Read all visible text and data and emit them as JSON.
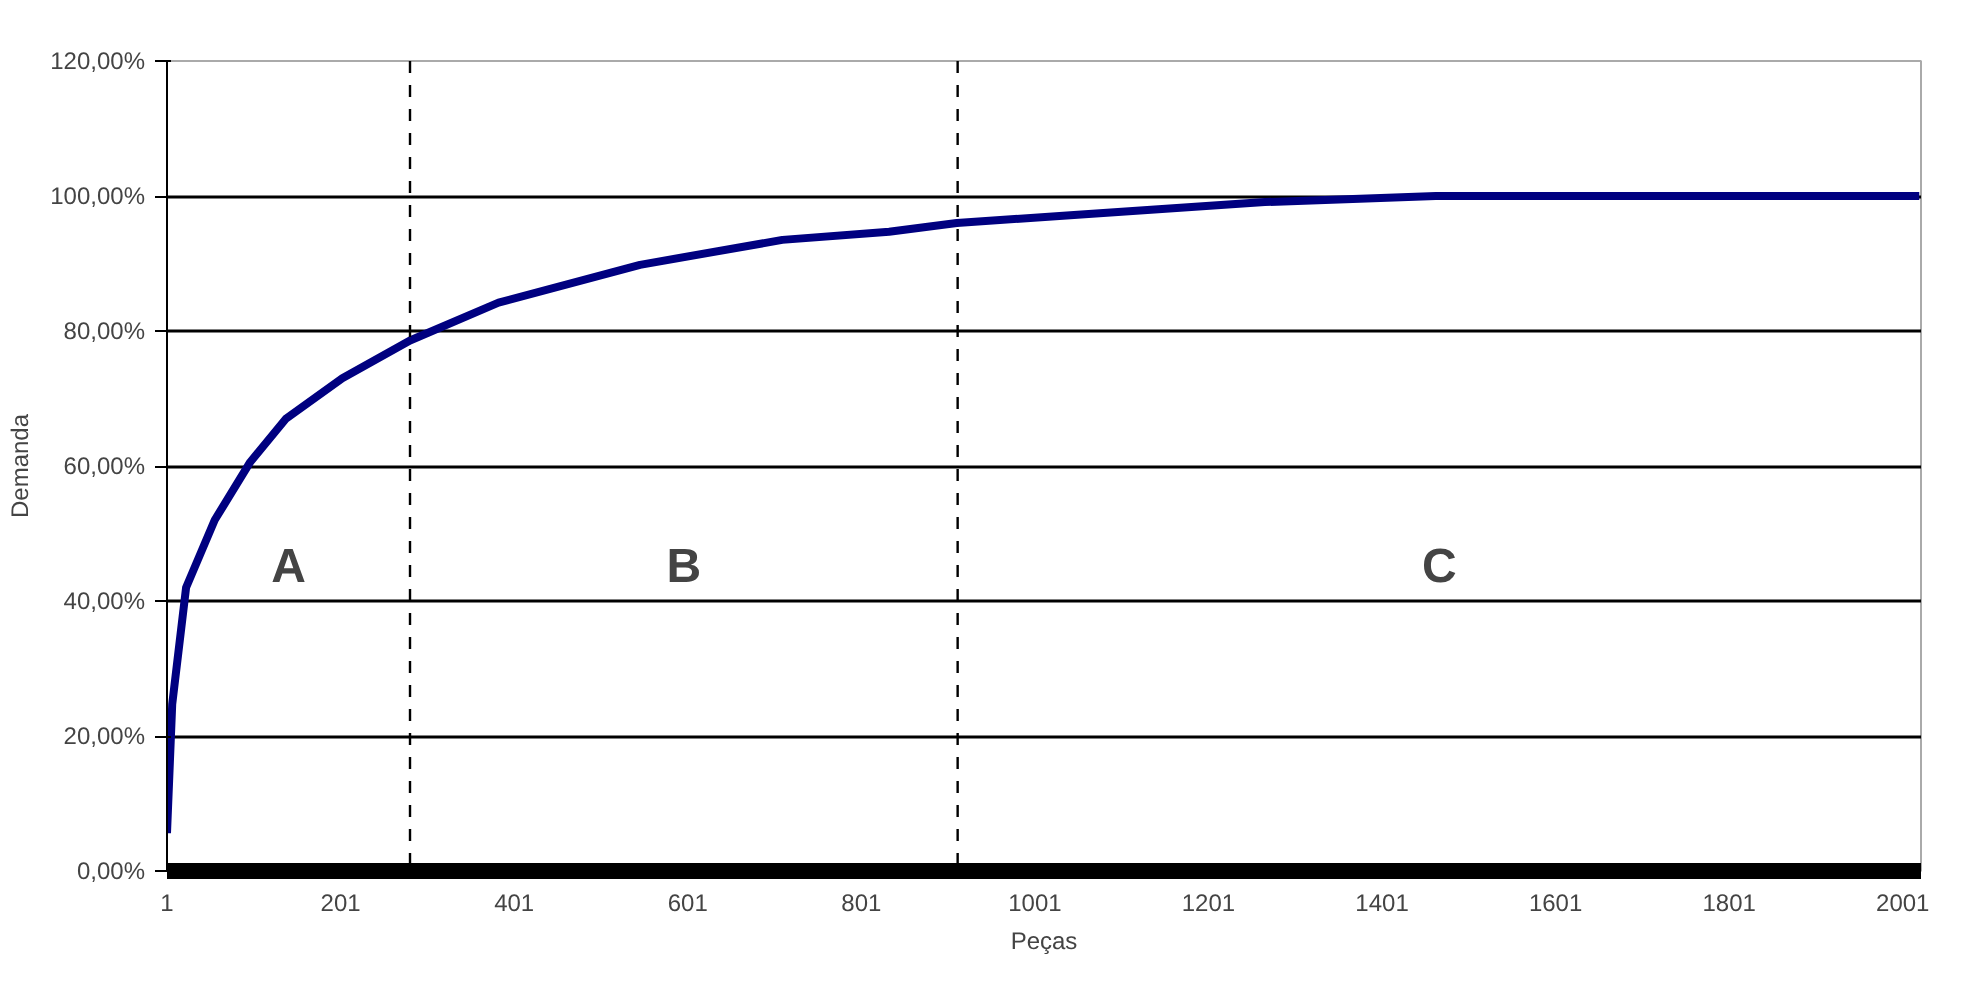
{
  "chart_data": {
    "type": "line",
    "xlabel": "Peças",
    "ylabel": "Demanda",
    "x": [
      1,
      7,
      23,
      56,
      97,
      138,
      203,
      281,
      383,
      546,
      710,
      833,
      911,
      1046,
      1266,
      1463,
      2020
    ],
    "series": [
      {
        "color": "#000080",
        "values": [
          5.6,
          24.7,
          42,
          52,
          60.6,
          67,
          73,
          78.6,
          84.2,
          89.8,
          93.5,
          94.7,
          96,
          97.2,
          99.1,
          100,
          100
        ]
      }
    ],
    "xlim": [
      1,
      2022
    ],
    "xticks": [
      1,
      201,
      401,
      601,
      801,
      1001,
      1201,
      1401,
      1601,
      1801,
      2001
    ],
    "ylim": [
      0,
      120
    ],
    "yticks": [
      {
        "value": 0,
        "label": "0,00%"
      },
      {
        "value": 20,
        "label": "20,00%"
      },
      {
        "value": 40,
        "label": "40,00%"
      },
      {
        "value": 60,
        "label": "60,00%"
      },
      {
        "value": 80,
        "label": "80,00%"
      },
      {
        "value": 100,
        "label": "100,00%"
      },
      {
        "value": 120,
        "label": "120,00%"
      }
    ],
    "grid": "y",
    "marker": "none",
    "line_style": "solid",
    "ref_lines": [
      {
        "axis": "x",
        "value": 281,
        "line_style": "dashed",
        "color": "#000000"
      },
      {
        "axis": "x",
        "value": 912,
        "line_style": "dashed",
        "color": "#000000"
      }
    ],
    "annotations": [
      "A",
      "B",
      "C"
    ]
  }
}
